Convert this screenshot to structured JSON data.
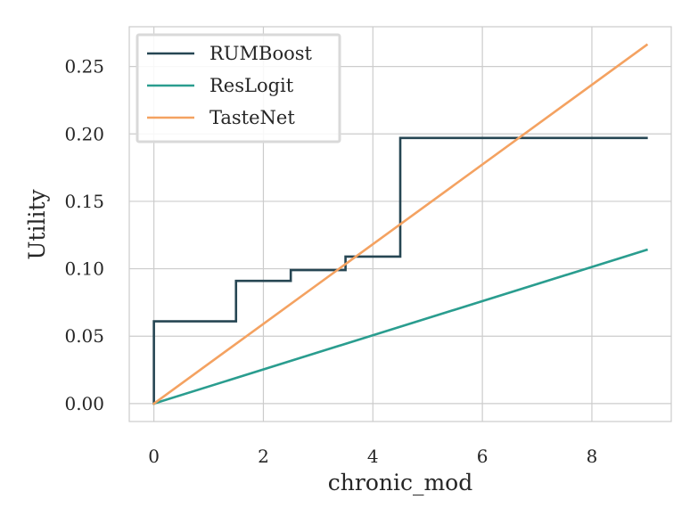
{
  "chart_data": {
    "type": "line",
    "xlabel": "chronic_mod",
    "ylabel": "Utility",
    "xlim": [
      -0.45,
      9.45
    ],
    "ylim": [
      -0.0133,
      0.2795
    ],
    "xticks": [
      0,
      2,
      4,
      6,
      8
    ],
    "yticks": [
      0.0,
      0.05,
      0.1,
      0.15,
      0.2,
      0.25
    ],
    "grid": true,
    "legend_position": "top-left",
    "series": [
      {
        "name": "RUMBoost",
        "color": "#264653",
        "step": true,
        "x": [
          0,
          0,
          1.5,
          1.5,
          2.5,
          2.5,
          3.5,
          3.5,
          4.5,
          4.5,
          9
        ],
        "y": [
          0,
          0.061,
          0.061,
          0.091,
          0.091,
          0.099,
          0.099,
          0.109,
          0.109,
          0.197,
          0.197
        ]
      },
      {
        "name": "ResLogit",
        "color": "#2a9d8f",
        "x": [
          0,
          9
        ],
        "y": [
          0,
          0.114
        ]
      },
      {
        "name": "TasteNet",
        "color": "#f4a261",
        "x": [
          0,
          9
        ],
        "y": [
          0,
          0.266
        ]
      }
    ]
  }
}
